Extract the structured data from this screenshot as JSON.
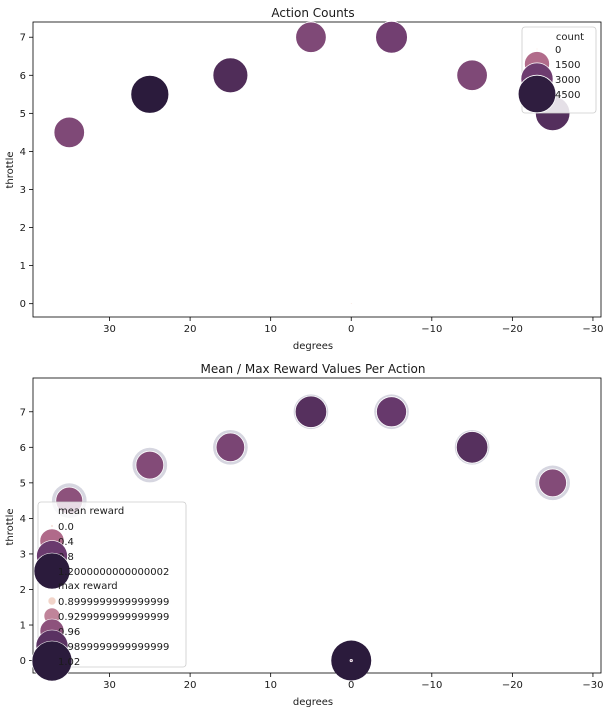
{
  "chart_data": [
    {
      "type": "scatter",
      "title": "Action Counts",
      "xlabel": "degrees",
      "ylabel": "throttle",
      "xlim": [
        39.5,
        -31
      ],
      "ylim": [
        -0.35,
        7.4
      ],
      "x_ticks": [
        30,
        20,
        10,
        0,
        -10,
        -20,
        -30
      ],
      "x_tick_labels": [
        "30",
        "20",
        "10",
        "0",
        "−10",
        "−20",
        "−30"
      ],
      "y_ticks": [
        0,
        1,
        2,
        3,
        4,
        5,
        6,
        7
      ],
      "y_tick_labels": [
        "0",
        "1",
        "2",
        "3",
        "4",
        "5",
        "6",
        "7"
      ],
      "grid": false,
      "legend_position": "top-right",
      "legend": {
        "title": "count",
        "entries": [
          {
            "label": "0",
            "value": 0
          },
          {
            "label": "1500",
            "value": 1500
          },
          {
            "label": "3000",
            "value": 3000
          },
          {
            "label": "4500",
            "value": 4500
          }
        ]
      },
      "points": [
        {
          "x": 35,
          "y": 4.5,
          "count": 2600
        },
        {
          "x": 25,
          "y": 5.5,
          "count": 4600
        },
        {
          "x": 15,
          "y": 6,
          "count": 3700
        },
        {
          "x": 5,
          "y": 7,
          "count": 2600
        },
        {
          "x": -5,
          "y": 7,
          "count": 2900
        },
        {
          "x": -15,
          "y": 6,
          "count": 2600
        },
        {
          "x": -25,
          "y": 5,
          "count": 3600
        },
        {
          "x": 0,
          "y": 0,
          "count": 0
        }
      ]
    },
    {
      "type": "scatter",
      "title": "Mean / Max Reward Values Per Action",
      "xlabel": "degrees",
      "ylabel": "throttle",
      "xlim": [
        39.5,
        -31
      ],
      "ylim": [
        -0.35,
        7.95
      ],
      "x_ticks": [
        30,
        20,
        10,
        0,
        -10,
        -20,
        -30
      ],
      "x_tick_labels": [
        "30",
        "20",
        "10",
        "0",
        "−10",
        "−20",
        "−30"
      ],
      "y_ticks": [
        0,
        1,
        2,
        3,
        4,
        5,
        6,
        7
      ],
      "y_tick_labels": [
        "0",
        "1",
        "2",
        "3",
        "4",
        "5",
        "6",
        "7"
      ],
      "grid": false,
      "legend_position": "bottom-left",
      "legend": {
        "groups": [
          {
            "title": "mean reward",
            "entries": [
              {
                "label": "0.0",
                "value": 0.0
              },
              {
                "label": "0.4",
                "value": 0.4
              },
              {
                "label": "0.8",
                "value": 0.8
              },
              {
                "label": "1.2000000000000002",
                "value": 1.2
              }
            ]
          },
          {
            "title": "max reward",
            "entries": [
              {
                "label": "0.8999999999999999",
                "value": 0.9
              },
              {
                "label": "0.9299999999999999",
                "value": 0.93
              },
              {
                "label": "0.96",
                "value": 0.96
              },
              {
                "label": "0.9899999999999999",
                "value": 0.99
              },
              {
                "label": "1.02",
                "value": 1.02
              }
            ]
          }
        ]
      },
      "points": [
        {
          "x": 35,
          "y": 4.5,
          "mean_reward": 0.55,
          "max_reward": 1.0
        },
        {
          "x": 25,
          "y": 5.5,
          "mean_reward": 0.6,
          "max_reward": 1.0
        },
        {
          "x": 15,
          "y": 6,
          "mean_reward": 0.65,
          "max_reward": 1.0
        },
        {
          "x": 5,
          "y": 7,
          "mean_reward": 0.85,
          "max_reward": 1.0
        },
        {
          "x": -5,
          "y": 7,
          "mean_reward": 0.75,
          "max_reward": 1.0
        },
        {
          "x": -15,
          "y": 6,
          "mean_reward": 0.85,
          "max_reward": 1.0
        },
        {
          "x": -25,
          "y": 5,
          "mean_reward": 0.6,
          "max_reward": 1.0
        },
        {
          "x": 0,
          "y": 0,
          "mean_reward": 0.0,
          "max_reward": 1.02
        }
      ]
    }
  ]
}
